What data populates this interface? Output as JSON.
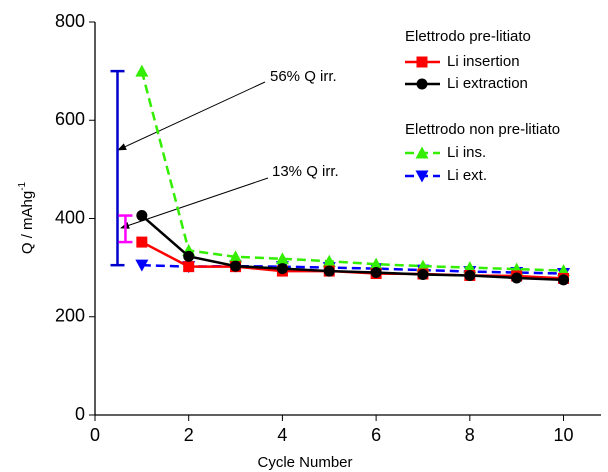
{
  "chart_data": {
    "type": "line",
    "xlabel": "Cycle Number",
    "ylabel": "Q / mAhg",
    "ylabel_superscript": "-1",
    "x": [
      1,
      2,
      3,
      4,
      5,
      6,
      7,
      8,
      9,
      10
    ],
    "xlim": [
      0,
      10.8
    ],
    "xticks": [
      0,
      2,
      4,
      6,
      8,
      10
    ],
    "ylim": [
      0,
      800
    ],
    "yticks": [
      0,
      200,
      400,
      600,
      800
    ],
    "legend_titles": [
      "Elettrodo pre-litiato",
      "Elettrodo non pre-litiato"
    ],
    "annotations": [
      "56% Q irr.",
      "13% Q irr."
    ],
    "series": [
      {
        "name": "Li insertion",
        "color": "#ff0000",
        "marker": "square",
        "dash": "solid",
        "values": [
          352,
          302,
          302,
          293,
          293,
          288,
          287,
          284,
          283,
          278
        ]
      },
      {
        "name": "Li extraction",
        "color": "#000000",
        "marker": "circle",
        "dash": "solid",
        "values": [
          406,
          323,
          303,
          298,
          293,
          290,
          286,
          284,
          279,
          275
        ]
      },
      {
        "name": "Li ins.",
        "color": "#33ee00",
        "marker": "triangle-up",
        "dash": "dashed",
        "values": [
          700,
          335,
          322,
          318,
          313,
          307,
          303,
          300,
          297,
          294
        ]
      },
      {
        "name": "Li ext.",
        "color": "#0000ff",
        "marker": "triangle-down",
        "dash": "dashed",
        "values": [
          305,
          302,
          303,
          302,
          300,
          298,
          295,
          292,
          290,
          288
        ]
      }
    ]
  }
}
